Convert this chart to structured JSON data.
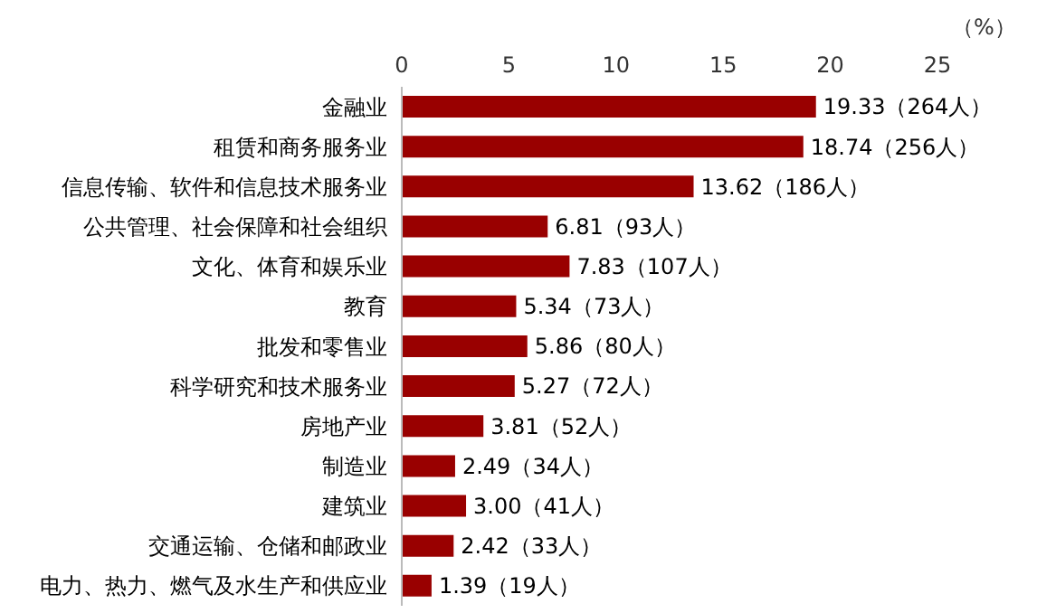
{
  "chart_data": {
    "type": "bar",
    "orientation": "horizontal",
    "xlabel": "（%）",
    "categories": [
      "金融业",
      "租赁和商务服务业",
      "信息传输、软件和信息技术服务业",
      "公共管理、社会保障和社会组织",
      "文化、体育和娱乐业",
      "教育",
      "批发和零售业",
      "科学研究和技术服务业",
      "房地产业",
      "制造业",
      "建筑业",
      "交通运输、仓储和邮政业",
      "电力、热力、燃气及水生产和供应业"
    ],
    "values": [
      19.33,
      18.74,
      13.62,
      6.81,
      7.83,
      5.34,
      5.86,
      5.27,
      3.81,
      2.49,
      3.0,
      2.42,
      1.39
    ],
    "value_labels": [
      "19.33（264人）",
      "18.74（256人）",
      "13.62（186人）",
      "6.81（93人）",
      "7.83（107人）",
      "5.34（73人）",
      "5.86（80人）",
      "5.27（72人）",
      "3.81（52人）",
      "2.49（34人）",
      "3.00（41人）",
      "2.42（33人）",
      "1.39（19人）"
    ],
    "color": "#990000",
    "xlim": [
      0,
      25
    ],
    "xticks": [
      0,
      5,
      10,
      15,
      20,
      25
    ],
    "grid": false,
    "legend": false
  }
}
